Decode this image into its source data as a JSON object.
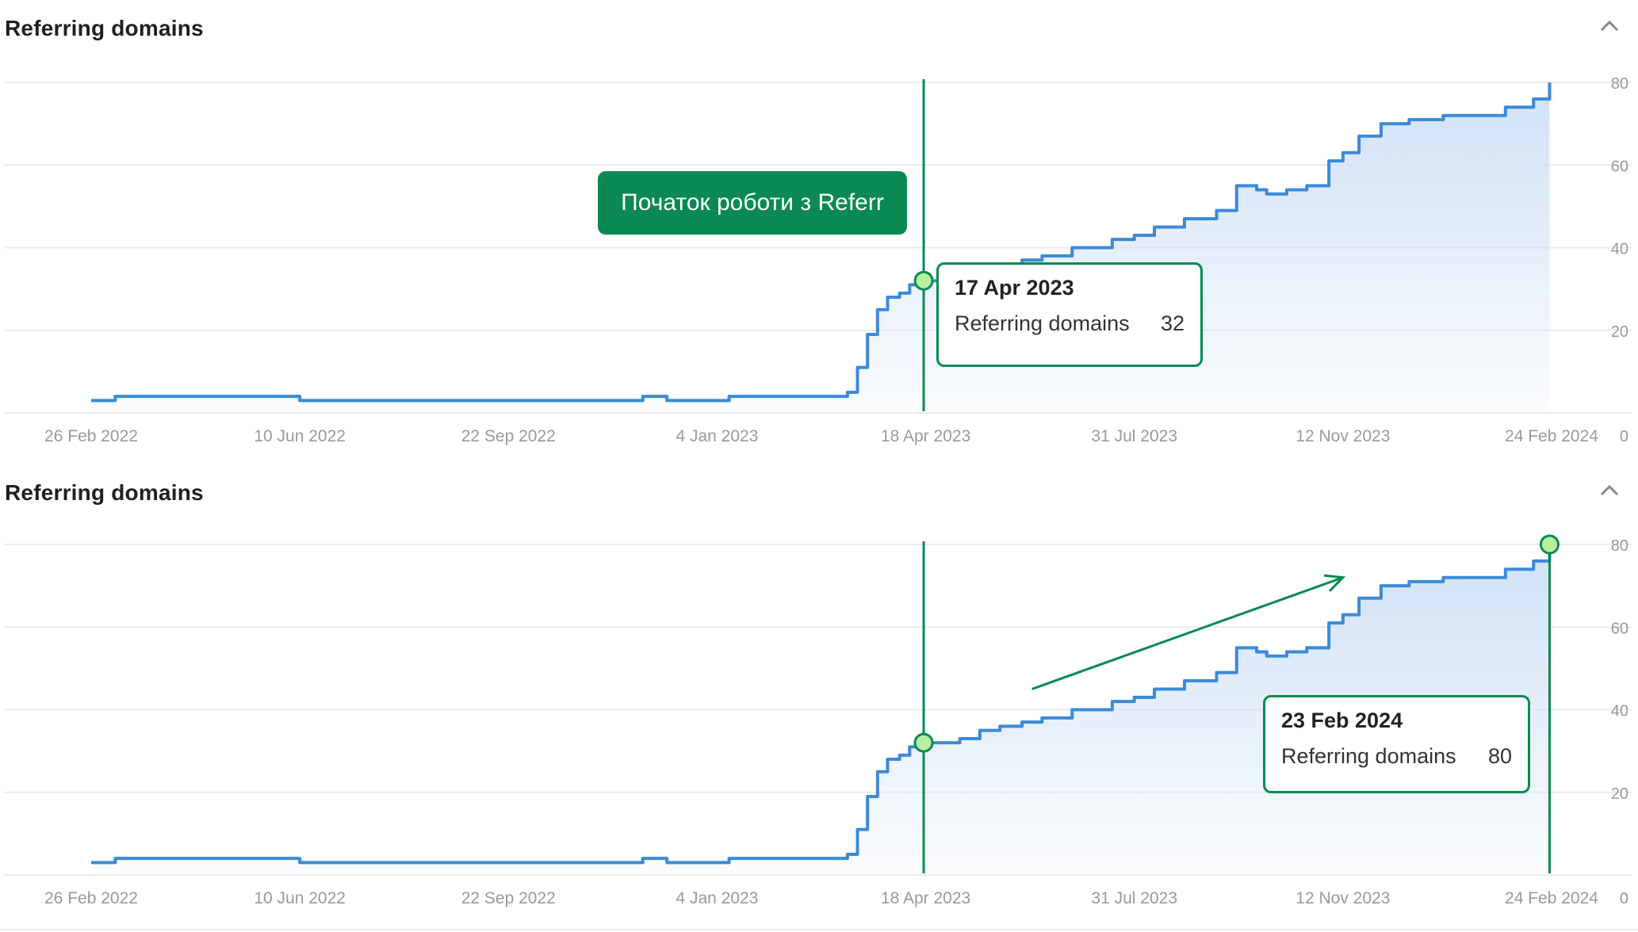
{
  "panels": [
    {
      "title": "Referring domains",
      "banner": "Початок роботи з Referr",
      "tooltip": {
        "date": "17 Apr 2023",
        "label": "Referring domains",
        "value": "32"
      }
    },
    {
      "title": "Referring domains",
      "tooltip": {
        "date": "23 Feb 2024",
        "label": "Referring domains",
        "value": "80"
      }
    }
  ],
  "colors": {
    "line": "#3b8ad9",
    "area": "#cfe1f6",
    "annotation": "#0a8a52",
    "marker_fill": "#b8f0a0",
    "grid": "#ececec",
    "tick_text": "#9a9a9a"
  },
  "icons": {
    "collapse": "chevron-up-icon",
    "trend": "arrow-icon"
  },
  "chart_data": [
    {
      "type": "area",
      "x_ticks": [
        "26 Feb 2022",
        "10 Jun 2022",
        "22 Sep 2022",
        "4 Jan 2023",
        "18 Apr 2023",
        "31 Jul 2023",
        "12 Nov 2023",
        "24 Feb 2024"
      ],
      "y_ticks": [
        0,
        20,
        40,
        60,
        80
      ],
      "ylim": [
        0,
        80
      ],
      "grid": true,
      "series": [
        {
          "x": [
            "2022-02-26",
            "2022-03-10",
            "2022-04-20",
            "2022-05-20",
            "2022-06-10",
            "2022-07-20",
            "2022-08-20",
            "2022-09-22",
            "2022-10-20",
            "2022-11-20",
            "2022-11-28",
            "2022-12-10",
            "2023-01-04",
            "2023-01-10",
            "2023-02-01",
            "2023-03-01",
            "2023-03-10",
            "2023-03-15",
            "2023-03-20",
            "2023-03-25",
            "2023-03-30",
            "2023-04-05",
            "2023-04-10",
            "2023-04-17",
            "2023-04-25",
            "2023-05-05",
            "2023-05-15",
            "2023-05-25",
            "2023-06-05",
            "2023-06-15",
            "2023-06-30",
            "2023-07-10",
            "2023-07-20",
            "2023-07-31",
            "2023-08-10",
            "2023-08-25",
            "2023-09-10",
            "2023-09-20",
            "2023-09-30",
            "2023-10-05",
            "2023-10-15",
            "2023-10-25",
            "2023-11-05",
            "2023-11-12",
            "2023-11-20",
            "2023-12-01",
            "2023-12-15",
            "2024-01-01",
            "2024-01-15",
            "2024-02-01",
            "2024-02-15",
            "2024-02-23"
          ],
          "y": [
            3,
            4,
            4,
            4,
            3,
            3,
            3,
            3,
            3,
            3,
            4,
            3,
            3,
            4,
            4,
            4,
            5,
            11,
            19,
            25,
            28,
            29,
            31,
            32,
            32,
            33,
            35,
            36,
            37,
            38,
            40,
            40,
            42,
            43,
            45,
            47,
            49,
            55,
            54,
            53,
            54,
            55,
            61,
            63,
            67,
            70,
            71,
            72,
            72,
            74,
            76,
            80
          ]
        }
      ],
      "annotations": [
        {
          "type": "vline",
          "x": "2023-04-17"
        }
      ]
    },
    {
      "type": "area",
      "x_ticks": [
        "26 Feb 2022",
        "10 Jun 2022",
        "22 Sep 2022",
        "4 Jan 2023",
        "18 Apr 2023",
        "31 Jul 2023",
        "12 Nov 2023",
        "24 Feb 2024"
      ],
      "y_ticks": [
        0,
        20,
        40,
        60,
        80
      ],
      "ylim": [
        0,
        80
      ],
      "grid": true,
      "series": [
        {
          "x": [
            "2022-02-26",
            "2022-03-10",
            "2022-04-20",
            "2022-05-20",
            "2022-06-10",
            "2022-07-20",
            "2022-08-20",
            "2022-09-22",
            "2022-10-20",
            "2022-11-20",
            "2022-11-28",
            "2022-12-10",
            "2023-01-04",
            "2023-01-10",
            "2023-02-01",
            "2023-03-01",
            "2023-03-10",
            "2023-03-15",
            "2023-03-20",
            "2023-03-25",
            "2023-03-30",
            "2023-04-05",
            "2023-04-10",
            "2023-04-17",
            "2023-04-25",
            "2023-05-05",
            "2023-05-15",
            "2023-05-25",
            "2023-06-05",
            "2023-06-15",
            "2023-06-30",
            "2023-07-10",
            "2023-07-20",
            "2023-07-31",
            "2023-08-10",
            "2023-08-25",
            "2023-09-10",
            "2023-09-20",
            "2023-09-30",
            "2023-10-05",
            "2023-10-15",
            "2023-10-25",
            "2023-11-05",
            "2023-11-12",
            "2023-11-20",
            "2023-12-01",
            "2023-12-15",
            "2024-01-01",
            "2024-01-15",
            "2024-02-01",
            "2024-02-15",
            "2024-02-23"
          ],
          "y": [
            3,
            4,
            4,
            4,
            3,
            3,
            3,
            3,
            3,
            3,
            4,
            3,
            3,
            4,
            4,
            4,
            5,
            11,
            19,
            25,
            28,
            29,
            31,
            32,
            32,
            33,
            35,
            36,
            37,
            38,
            40,
            40,
            42,
            43,
            45,
            47,
            49,
            55,
            54,
            53,
            54,
            55,
            61,
            63,
            67,
            70,
            71,
            72,
            72,
            74,
            76,
            80
          ]
        }
      ],
      "annotations": [
        {
          "type": "vline",
          "x": "2023-04-17"
        },
        {
          "type": "vline",
          "x": "2024-02-23"
        },
        {
          "type": "arrow",
          "from": {
            "x": "2023-06-10",
            "y": 45
          },
          "to": {
            "x": "2023-11-12",
            "y": 72
          }
        }
      ]
    }
  ]
}
